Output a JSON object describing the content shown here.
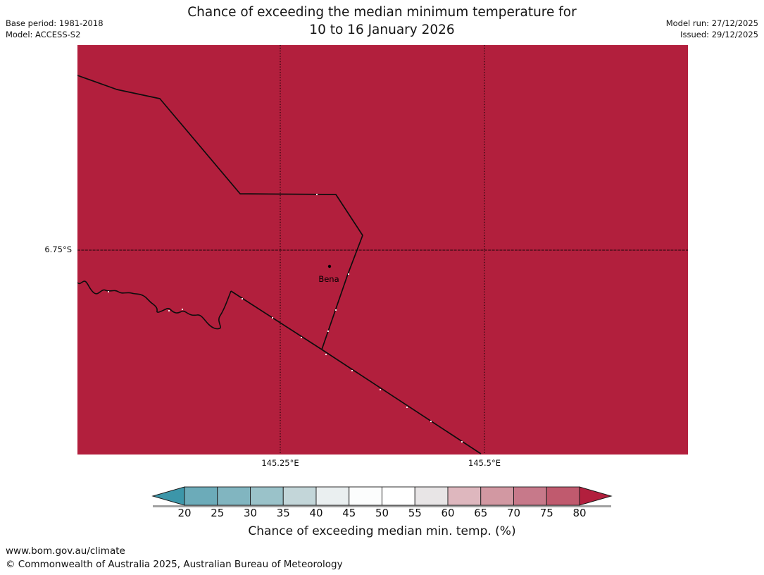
{
  "header": {
    "title_line1": "Chance of exceeding the median minimum temperature for",
    "title_line2": "10 to 16 January 2026",
    "base_period": "Base period: 1981-2018",
    "model": "Model: ACCESS-S2",
    "model_run": "Model run: 27/12/2025",
    "issued": "Issued: 29/12/2025"
  },
  "map": {
    "fill_color": "#B21F3D",
    "place_label": "Bena",
    "lat_label": "6.75°S",
    "lon_labels": [
      "145.25°E",
      "145.5°E"
    ]
  },
  "colorbar": {
    "caption": "Chance of exceeding median min. temp. (%)",
    "ticks": [
      "20",
      "25",
      "30",
      "35",
      "40",
      "45",
      "50",
      "55",
      "60",
      "65",
      "70",
      "75",
      "80"
    ],
    "cells": [
      "#6CABB9",
      "#81B5C0",
      "#9AC2C9",
      "#C3D6D9",
      "#EAEFF0",
      "#FCFDFD",
      "#FFFFFF",
      "#E8E5E6",
      "#DEB7BE",
      "#D298A2",
      "#C7798A",
      "#C05A6E"
    ],
    "arrow_left": "#3C96A9",
    "arrow_right": "#B21F3D",
    "shadow_color": "#909090"
  },
  "footer": {
    "url": "www.bom.gov.au/climate",
    "copyright": "© Commonwealth of Australia 2025, Australian Bureau of Meteorology"
  },
  "chart_data": {
    "type": "heatmap",
    "title": "Chance of exceeding the median minimum temperature for 10 to 16 January 2026",
    "colorbar_label": "Chance of exceeding median min. temp. (%)",
    "colorbar_ticks": [
      20,
      25,
      30,
      35,
      40,
      45,
      50,
      55,
      60,
      65,
      70,
      75,
      80
    ],
    "colorbar_units": "%",
    "gridlines": {
      "lat": [
        "6.75°S"
      ],
      "lon": [
        "145.25°E",
        "145.5°E"
      ]
    },
    "places": [
      {
        "name": "Bena",
        "marker": "dot"
      }
    ],
    "observed_values": "entire visible map region shaded in the > 80% color (dark red)",
    "legend_position": "bottom",
    "base_period": "1981-2018",
    "model": "ACCESS-S2",
    "model_run": "27/12/2025",
    "issued": "29/12/2025"
  }
}
